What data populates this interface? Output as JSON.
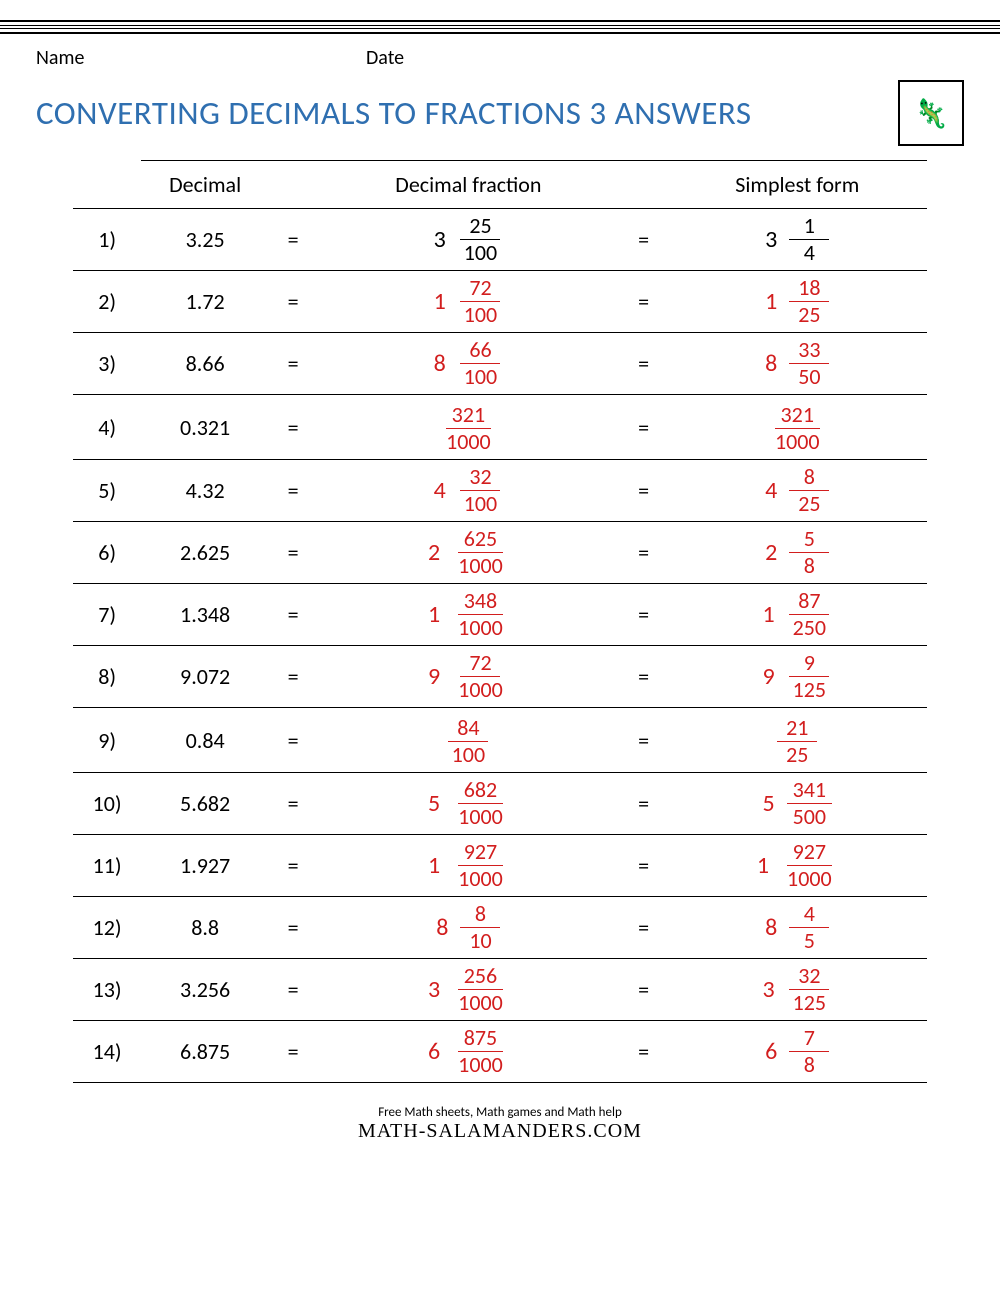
{
  "labels": {
    "name": "Name",
    "date": "Date"
  },
  "title": "CONVERTING DECIMALS TO FRACTIONS 3 ANSWERS",
  "columns": {
    "decimal": "Decimal",
    "decimal_fraction": "Decimal fraction",
    "simplest": "Simplest form"
  },
  "equals": "=",
  "close_paren": ")",
  "colors": {
    "title": "#2f6fb0",
    "answer": "#d21e1e",
    "first_row": "#000000",
    "rule": "#000000",
    "background": "#ffffff"
  },
  "rows": [
    {
      "n": "1",
      "decimal": "3.25",
      "df_whole": "3",
      "df_num": "25",
      "df_den": "100",
      "sf_whole": "3",
      "sf_num": "1",
      "sf_den": "4",
      "color": "#000000"
    },
    {
      "n": "2",
      "decimal": "1.72",
      "df_whole": "1",
      "df_num": "72",
      "df_den": "100",
      "sf_whole": "1",
      "sf_num": "18",
      "sf_den": "25",
      "color": "#d21e1e"
    },
    {
      "n": "3",
      "decimal": "8.66",
      "df_whole": "8",
      "df_num": "66",
      "df_den": "100",
      "sf_whole": "8",
      "sf_num": "33",
      "sf_den": "50",
      "color": "#d21e1e"
    },
    {
      "n": "4",
      "decimal": "0.321",
      "df_whole": "",
      "df_num": "321",
      "df_den": "1000",
      "sf_whole": "",
      "sf_num": "321",
      "sf_den": "1000",
      "color": "#d21e1e"
    },
    {
      "n": "5",
      "decimal": "4.32",
      "df_whole": "4",
      "df_num": "32",
      "df_den": "100",
      "sf_whole": "4",
      "sf_num": "8",
      "sf_den": "25",
      "color": "#d21e1e"
    },
    {
      "n": "6",
      "decimal": "2.625",
      "df_whole": "2",
      "df_num": "625",
      "df_den": "1000",
      "sf_whole": "2",
      "sf_num": "5",
      "sf_den": "8",
      "color": "#d21e1e"
    },
    {
      "n": "7",
      "decimal": "1.348",
      "df_whole": "1",
      "df_num": "348",
      "df_den": "1000",
      "sf_whole": "1",
      "sf_num": "87",
      "sf_den": "250",
      "color": "#d21e1e"
    },
    {
      "n": "8",
      "decimal": "9.072",
      "df_whole": "9",
      "df_num": "72",
      "df_den": "1000",
      "sf_whole": "9",
      "sf_num": "9",
      "sf_den": "125",
      "color": "#d21e1e"
    },
    {
      "n": "9",
      "decimal": "0.84",
      "df_whole": "",
      "df_num": "84",
      "df_den": "100",
      "sf_whole": "",
      "sf_num": "21",
      "sf_den": "25",
      "color": "#d21e1e"
    },
    {
      "n": "10",
      "decimal": "5.682",
      "df_whole": "5",
      "df_num": "682",
      "df_den": "1000",
      "sf_whole": "5",
      "sf_num": "341",
      "sf_den": "500",
      "color": "#d21e1e"
    },
    {
      "n": "11",
      "decimal": "1.927",
      "df_whole": "1",
      "df_num": "927",
      "df_den": "1000",
      "sf_whole": "1",
      "sf_num": "927",
      "sf_den": "1000",
      "color": "#d21e1e"
    },
    {
      "n": "12",
      "decimal": "8.8",
      "df_whole": "8",
      "df_num": "8",
      "df_den": "10",
      "sf_whole": "8",
      "sf_num": "4",
      "sf_den": "5",
      "color": "#d21e1e"
    },
    {
      "n": "13",
      "decimal": "3.256",
      "df_whole": "3",
      "df_num": "256",
      "df_den": "1000",
      "sf_whole": "3",
      "sf_num": "32",
      "sf_den": "125",
      "color": "#d21e1e"
    },
    {
      "n": "14",
      "decimal": "6.875",
      "df_whole": "6",
      "df_num": "875",
      "df_den": "1000",
      "sf_whole": "6",
      "sf_num": "7",
      "sf_den": "8",
      "color": "#d21e1e"
    }
  ],
  "footer": {
    "tagline": "Free Math sheets, Math games and Math help",
    "site": "MATH-SALAMANDERS.COM"
  }
}
